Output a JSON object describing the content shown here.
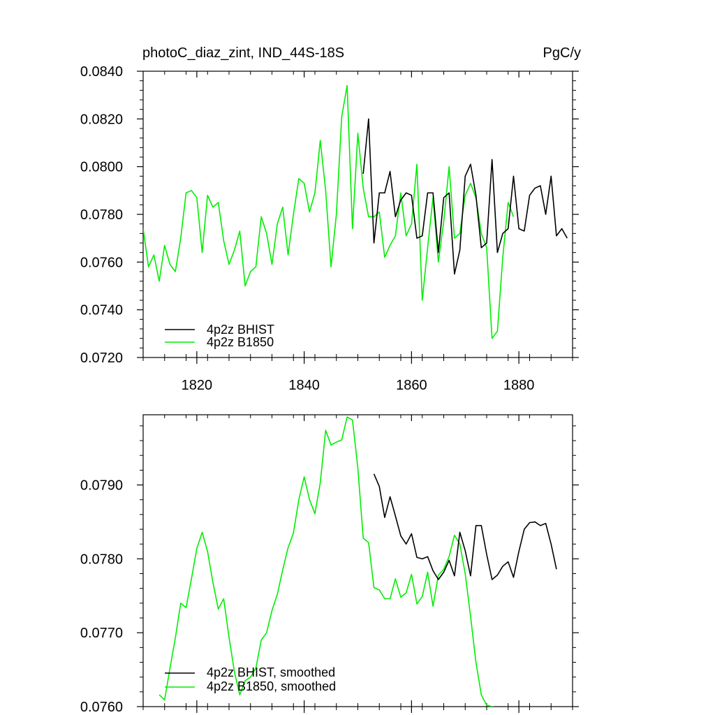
{
  "chart_data": [
    {
      "type": "line",
      "title": "photoC_diaz_zint, IND_44S-18S",
      "units": "PgC/y",
      "xlim": [
        1810,
        1890
      ],
      "ylim": [
        0.072,
        0.084
      ],
      "x_ticks": [
        1820,
        1840,
        1860,
        1880
      ],
      "x_tick_labels": [
        "1820",
        "1840",
        "1860",
        "1880"
      ],
      "y_ticks": [
        0.072,
        0.074,
        0.076,
        0.078,
        0.08,
        0.082,
        0.084
      ],
      "y_tick_labels": [
        "0.0720",
        "0.0740",
        "0.0760",
        "0.0780",
        "0.0800",
        "0.0820",
        "0.0840"
      ],
      "grid": false,
      "legend_position": "bottom-left",
      "series": [
        {
          "name": "4p2z BHIST",
          "color": "#000000",
          "x": [
            1851,
            1852,
            1853,
            1854,
            1855,
            1856,
            1857,
            1858,
            1859,
            1860,
            1861,
            1862,
            1863,
            1864,
            1865,
            1866,
            1867,
            1868,
            1869,
            1870,
            1871,
            1872,
            1873,
            1874,
            1875,
            1876,
            1877,
            1878,
            1879,
            1880,
            1881,
            1882,
            1883,
            1884,
            1885,
            1886,
            1887,
            1888,
            1889
          ],
          "y": [
            0.0797,
            0.082,
            0.0768,
            0.0789,
            0.0789,
            0.0798,
            0.0779,
            0.0786,
            0.0789,
            0.0788,
            0.077,
            0.0771,
            0.0789,
            0.0789,
            0.0764,
            0.0787,
            0.0789,
            0.0755,
            0.0765,
            0.0796,
            0.0801,
            0.0788,
            0.0766,
            0.0768,
            0.0803,
            0.0764,
            0.0772,
            0.0774,
            0.0796,
            0.0774,
            0.0773,
            0.0788,
            0.0791,
            0.0792,
            0.078,
            0.0796,
            0.0771,
            0.0774,
            0.077
          ]
        },
        {
          "name": "4p2z B1850",
          "color": "#00ee00",
          "x": [
            1810,
            1811,
            1812,
            1813,
            1814,
            1815,
            1816,
            1817,
            1818,
            1819,
            1820,
            1821,
            1822,
            1823,
            1824,
            1825,
            1826,
            1827,
            1828,
            1829,
            1830,
            1831,
            1832,
            1833,
            1834,
            1835,
            1836,
            1837,
            1838,
            1839,
            1840,
            1841,
            1842,
            1843,
            1844,
            1845,
            1846,
            1847,
            1848,
            1849,
            1850,
            1851,
            1852,
            1853,
            1854,
            1855,
            1856,
            1857,
            1858,
            1859,
            1860,
            1861,
            1862,
            1863,
            1864,
            1865,
            1866,
            1867,
            1868,
            1869,
            1870,
            1871,
            1872,
            1873,
            1874,
            1875,
            1876,
            1877,
            1878,
            1879
          ],
          "y": [
            0.0774,
            0.0758,
            0.0763,
            0.0752,
            0.0767,
            0.0759,
            0.0756,
            0.077,
            0.0789,
            0.079,
            0.0787,
            0.0764,
            0.0788,
            0.0783,
            0.0785,
            0.0769,
            0.0759,
            0.0765,
            0.0773,
            0.075,
            0.0756,
            0.0758,
            0.0779,
            0.0772,
            0.0759,
            0.0776,
            0.0783,
            0.0763,
            0.078,
            0.0795,
            0.0793,
            0.0781,
            0.0789,
            0.0811,
            0.079,
            0.0758,
            0.078,
            0.0821,
            0.0834,
            0.0774,
            0.0814,
            0.0791,
            0.0779,
            0.0779,
            0.0781,
            0.0762,
            0.0767,
            0.0771,
            0.0789,
            0.0771,
            0.0776,
            0.0801,
            0.0744,
            0.0766,
            0.0787,
            0.076,
            0.0777,
            0.08,
            0.077,
            0.0772,
            0.0788,
            0.0793,
            0.0787,
            0.0772,
            0.0766,
            0.0728,
            0.0731,
            0.0762,
            0.0785,
            0.0779
          ]
        }
      ]
    },
    {
      "type": "line",
      "xlim": [
        1810,
        1890
      ],
      "ylim": [
        0.076,
        0.07995
      ],
      "x_ticks": [
        1820,
        1840,
        1860,
        1880
      ],
      "y_ticks": [
        0.076,
        0.077,
        0.078,
        0.079
      ],
      "y_tick_labels": [
        "0.0760",
        "0.0770",
        "0.0780",
        "0.0790"
      ],
      "grid": false,
      "legend_position": "bottom-left",
      "series": [
        {
          "name": "4p2z BHIST, smoothed",
          "color": "#000000",
          "x": [
            1853,
            1854,
            1855,
            1856,
            1857,
            1858,
            1859,
            1860,
            1861,
            1862,
            1863,
            1864,
            1865,
            1866,
            1867,
            1868,
            1869,
            1870,
            1871,
            1872,
            1873,
            1874,
            1875,
            1876,
            1877,
            1878,
            1879,
            1880,
            1881,
            1882,
            1883,
            1884,
            1885,
            1886,
            1887
          ],
          "y": [
            0.07915,
            0.07898,
            0.07856,
            0.07884,
            0.07858,
            0.07831,
            0.0782,
            0.07834,
            0.07802,
            0.078,
            0.07803,
            0.07784,
            0.07772,
            0.07782,
            0.07798,
            0.07777,
            0.07836,
            0.07811,
            0.07777,
            0.07845,
            0.07845,
            0.07806,
            0.07772,
            0.07778,
            0.0779,
            0.07796,
            0.07775,
            0.0781,
            0.0784,
            0.07849,
            0.0785,
            0.07845,
            0.07848,
            0.0782,
            0.07786
          ]
        },
        {
          "name": "4p2z B1850, smoothed",
          "color": "#00ee00",
          "x": [
            1813,
            1814,
            1815,
            1816,
            1817,
            1818,
            1819,
            1820,
            1821,
            1822,
            1823,
            1824,
            1825,
            1826,
            1827,
            1828,
            1829,
            1830,
            1831,
            1832,
            1833,
            1834,
            1835,
            1836,
            1837,
            1838,
            1839,
            1840,
            1841,
            1842,
            1843,
            1844,
            1845,
            1846,
            1847,
            1848,
            1849,
            1850,
            1851,
            1852,
            1853,
            1854,
            1855,
            1856,
            1857,
            1858,
            1859,
            1860,
            1861,
            1862,
            1863,
            1864,
            1865,
            1866,
            1867,
            1868,
            1869,
            1870,
            1871,
            1872,
            1873,
            1874,
            1875,
            1876,
            1877
          ],
          "y": [
            0.07616,
            0.07609,
            0.07652,
            0.07693,
            0.0774,
            0.07734,
            0.07773,
            0.07814,
            0.07836,
            0.0781,
            0.07768,
            0.07732,
            0.07746,
            0.07694,
            0.07647,
            0.07616,
            0.07635,
            0.0764,
            0.07652,
            0.0769,
            0.077,
            0.0773,
            0.07752,
            0.07785,
            0.07815,
            0.07835,
            0.0788,
            0.07911,
            0.0788,
            0.07861,
            0.07903,
            0.07974,
            0.07954,
            0.07958,
            0.07961,
            0.07992,
            0.07988,
            0.07923,
            0.07828,
            0.07822,
            0.07761,
            0.07758,
            0.07746,
            0.07746,
            0.07773,
            0.07748,
            0.07754,
            0.07779,
            0.07739,
            0.07749,
            0.07782,
            0.07736,
            0.07778,
            0.07786,
            0.07803,
            0.07832,
            0.0782,
            0.0778,
            0.07722,
            0.0766,
            0.07616,
            0.07602,
            0.076,
            0.07598,
            0.07597
          ]
        }
      ]
    }
  ]
}
